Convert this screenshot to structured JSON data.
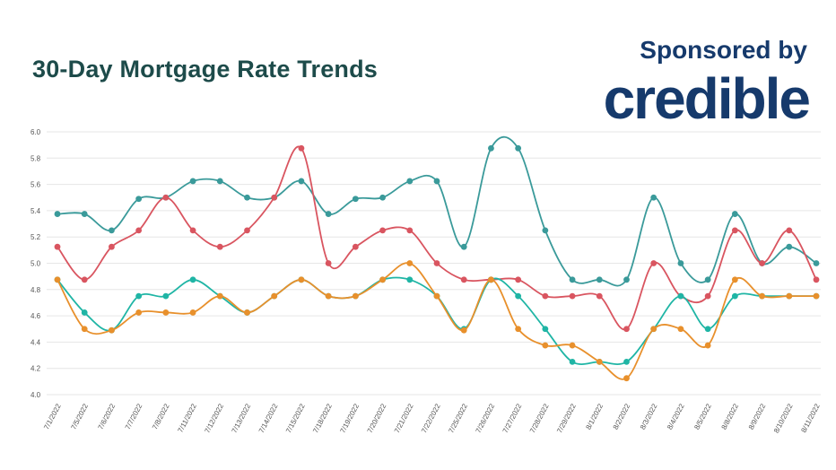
{
  "header": {
    "title": "30-Day Mortgage Rate Trends",
    "sponsored_label": "Sponsored by",
    "brand": "credible"
  },
  "chart_data": {
    "type": "line",
    "title": "30-Day Mortgage Rate Trends",
    "xlabel": "",
    "ylabel": "",
    "ylim": [
      4.0,
      6.0
    ],
    "y_ticks": [
      "6.0",
      "5.8",
      "5.6",
      "5.4",
      "5.2",
      "5.0",
      "4.8",
      "4.6",
      "4.4",
      "4.2",
      "4.0"
    ],
    "grid": true,
    "categories": [
      "7/1/2022",
      "7/5/2022",
      "7/6/2022",
      "7/7/2022",
      "7/8/2022",
      "7/11/2022",
      "7/12/2022",
      "7/13/2022",
      "7/14/2022",
      "7/15/2022",
      "7/18/2022",
      "7/19/2022",
      "7/20/2022",
      "7/21/2022",
      "7/22/2022",
      "7/25/2022",
      "7/26/2022",
      "7/27/2022",
      "7/28/2022",
      "7/29/2022",
      "8/1/2022",
      "8/2/2022",
      "8/3/2022",
      "8/4/2022",
      "8/5/2022",
      "8/8/2022",
      "8/9/2022",
      "8/10/2022",
      "8/11/2022"
    ],
    "series": [
      {
        "color": "#3a9a9a",
        "values": [
          5.375,
          5.375,
          5.25,
          5.49,
          5.5,
          5.625,
          5.625,
          5.5,
          5.5,
          5.625,
          5.375,
          5.49,
          5.5,
          5.625,
          5.625,
          5.125,
          5.875,
          5.875,
          5.25,
          4.875,
          4.875,
          4.875,
          5.5,
          5.0,
          4.875,
          5.375,
          5.0,
          5.125,
          5.0
        ]
      },
      {
        "color": "#d95560",
        "values": [
          5.125,
          4.875,
          5.125,
          5.25,
          5.5,
          5.25,
          5.125,
          5.25,
          5.5,
          5.875,
          5.0,
          5.125,
          5.25,
          5.25,
          5.0,
          4.875,
          4.875,
          4.875,
          4.75,
          4.75,
          4.75,
          4.5,
          5.0,
          4.75,
          4.75,
          5.25,
          5.0,
          5.25,
          4.875
        ]
      },
      {
        "color": "#1fb5a5",
        "values": [
          4.875,
          4.625,
          4.49,
          4.75,
          4.75,
          4.875,
          4.75,
          4.625,
          4.75,
          4.875,
          4.75,
          4.75,
          4.875,
          4.875,
          4.75,
          4.5,
          4.875,
          4.75,
          4.5,
          4.25,
          4.25,
          4.25,
          4.5,
          4.75,
          4.5,
          4.75,
          4.75,
          4.75,
          4.75
        ]
      },
      {
        "color": "#e8902c",
        "values": [
          4.875,
          4.5,
          4.49,
          4.625,
          4.625,
          4.625,
          4.75,
          4.625,
          4.75,
          4.875,
          4.75,
          4.75,
          4.875,
          5.0,
          4.75,
          4.49,
          4.875,
          4.5,
          4.375,
          4.375,
          4.25,
          4.125,
          4.5,
          4.5,
          4.375,
          4.875,
          4.75,
          4.75,
          4.75
        ]
      }
    ]
  }
}
